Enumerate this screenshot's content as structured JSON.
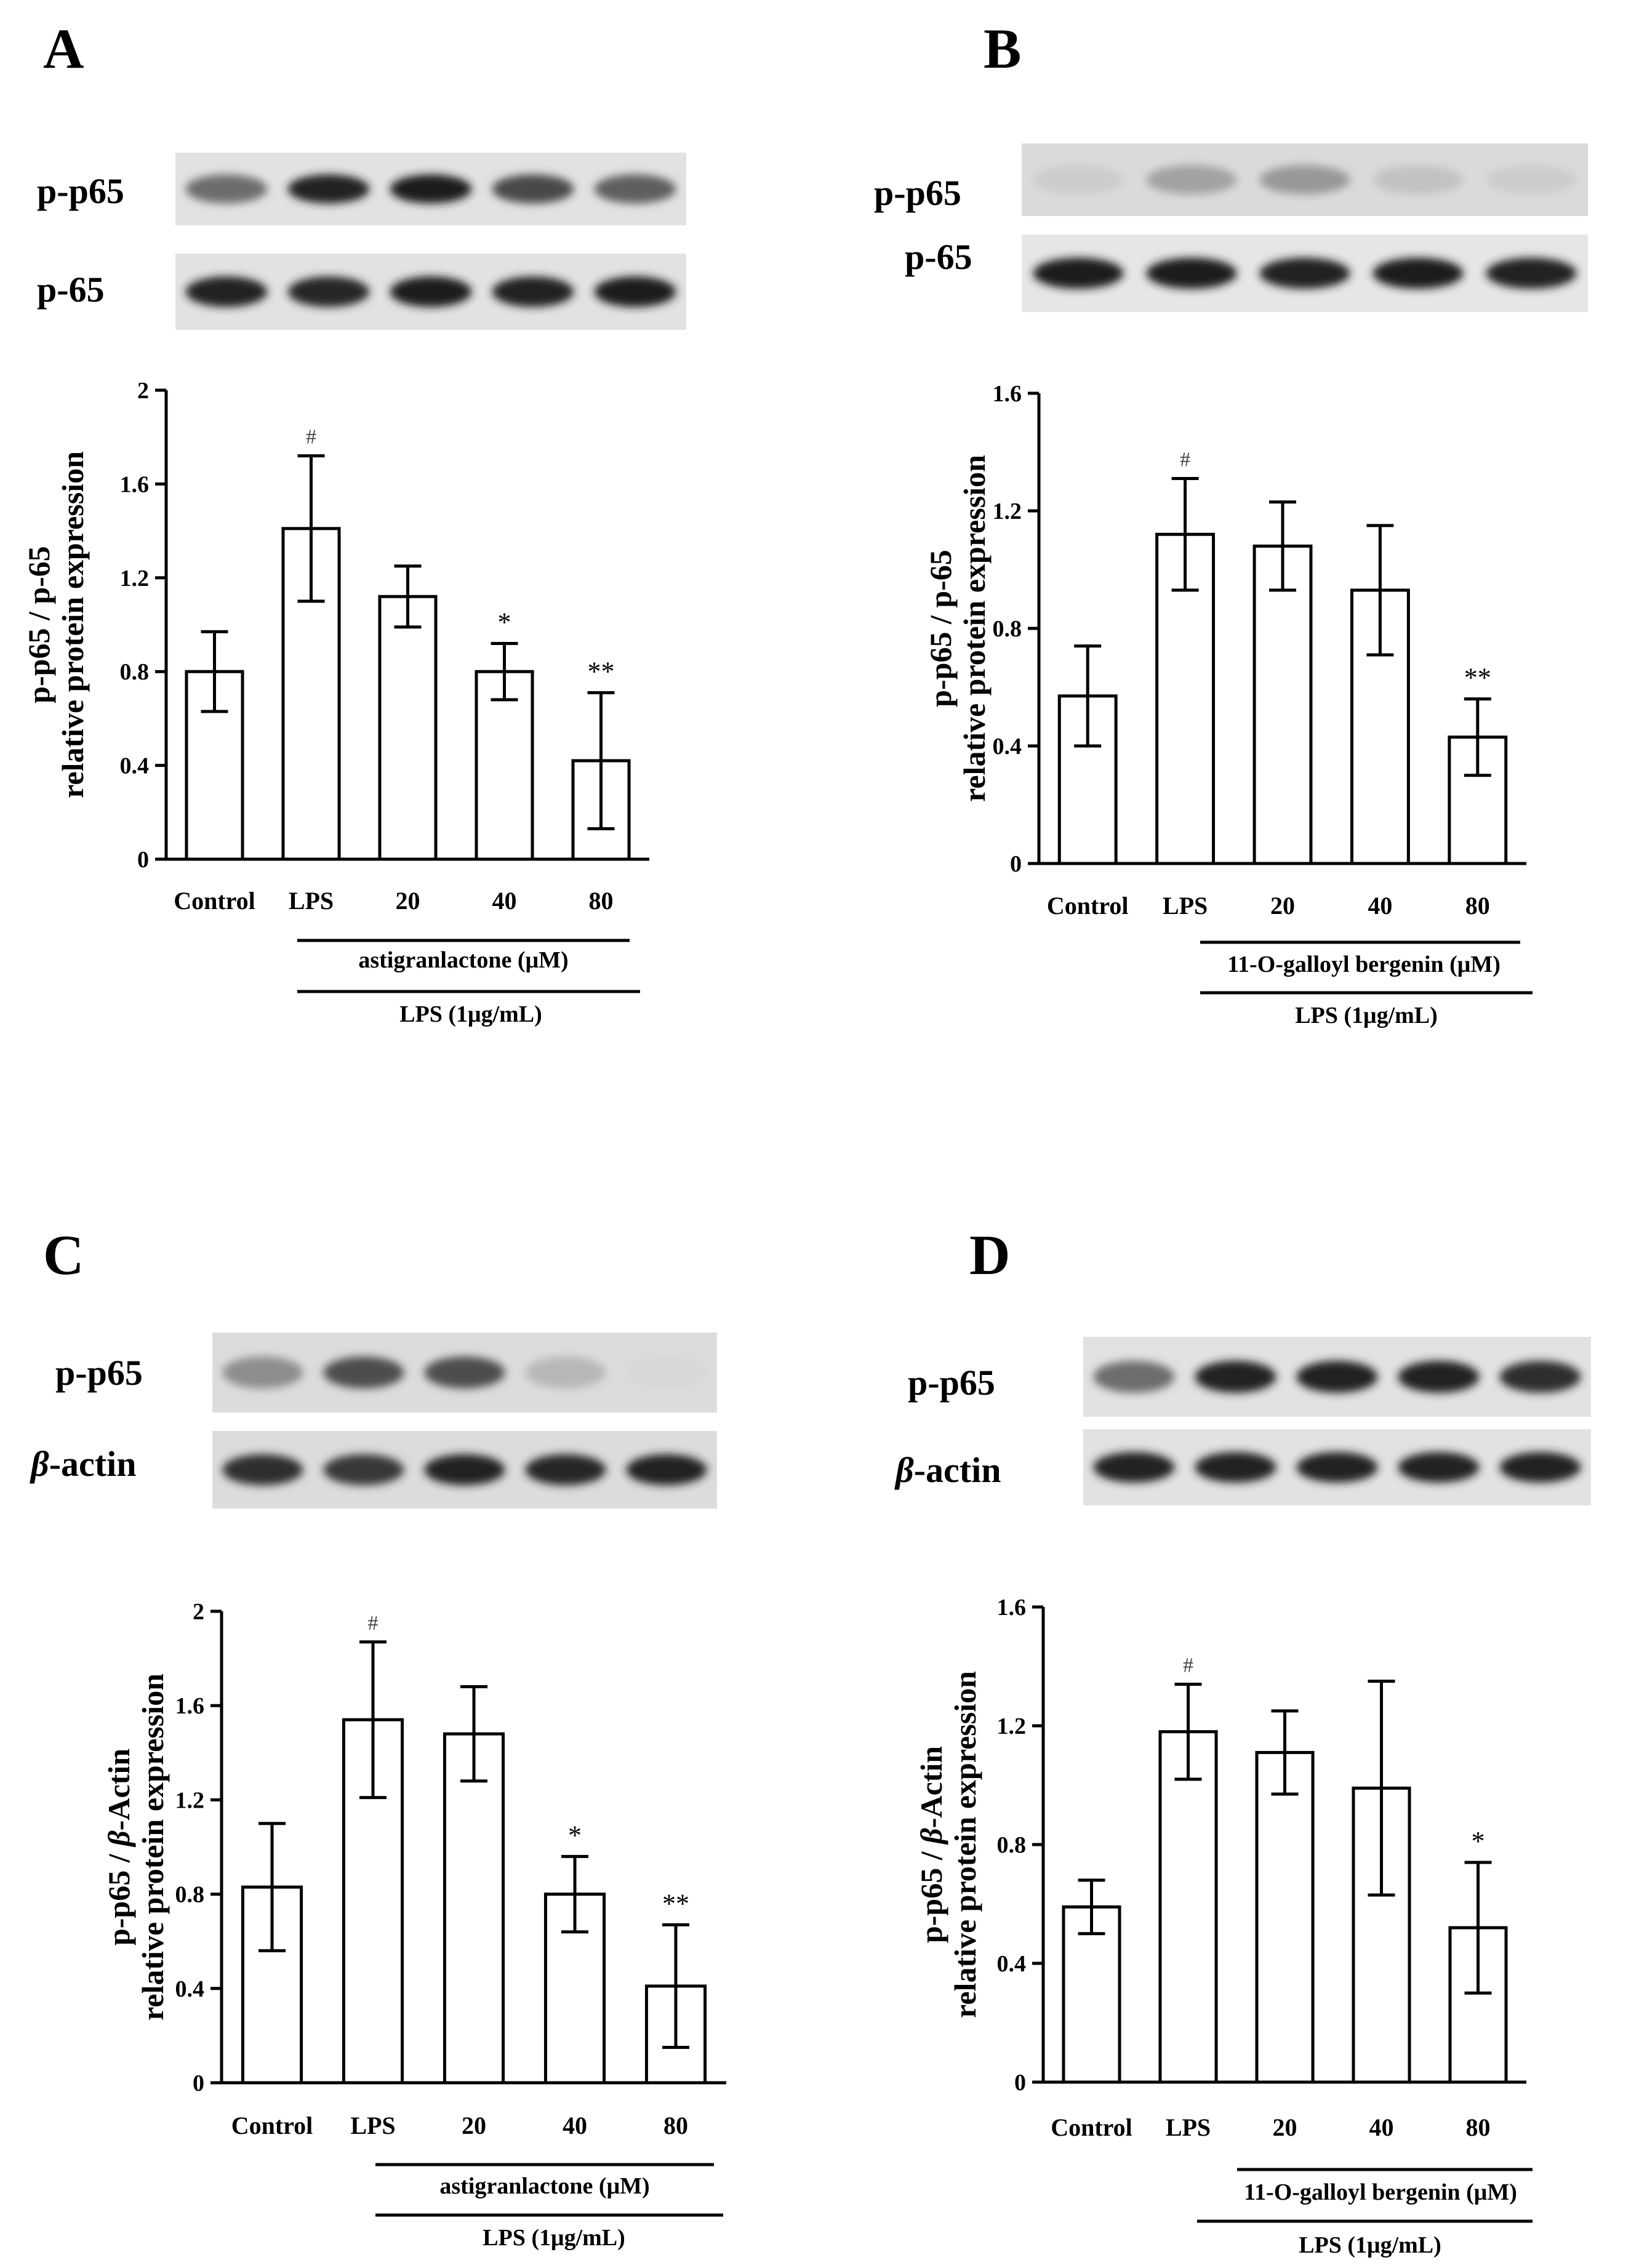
{
  "panels": [
    {
      "letter": "A",
      "blots": [
        {
          "label": "p-p65",
          "italic_prefix": "",
          "intensities": [
            0.55,
            0.92,
            0.95,
            0.72,
            0.62
          ],
          "background": "#e2e2e2"
        },
        {
          "label": "p-65",
          "italic_prefix": "",
          "intensities": [
            0.92,
            0.88,
            0.95,
            0.9,
            0.93
          ],
          "background": "#e2e2e2"
        }
      ],
      "ylabel_line1": "p-p65 / p-65",
      "ylabel_line2": "relative protein expression",
      "underline_agent": "astigranlactone (μM)",
      "underline_lps": "LPS (1μg/mL)"
    },
    {
      "letter": "B",
      "blots": [
        {
          "label": "p-p65",
          "italic_prefix": "",
          "intensities": [
            0.1,
            0.3,
            0.35,
            0.15,
            0.1
          ],
          "background": "#dadada"
        },
        {
          "label": "p-65",
          "italic_prefix": "",
          "intensities": [
            0.95,
            0.95,
            0.92,
            0.94,
            0.9
          ],
          "background": "#e6e6e6"
        }
      ],
      "ylabel_line1": "p-p65 / p-65",
      "ylabel_line2": "relative protein expression",
      "underline_agent": "11-O-galloyl bergenin (μM)",
      "underline_lps": "LPS (1μg/mL)"
    },
    {
      "letter": "C",
      "blots": [
        {
          "label": "p-p65",
          "italic_prefix": "",
          "intensities": [
            0.4,
            0.7,
            0.7,
            0.2,
            0.05
          ],
          "background": "#dcdcdc"
        },
        {
          "label": "-actin",
          "italic_prefix": "β",
          "intensities": [
            0.85,
            0.8,
            0.9,
            0.88,
            0.9
          ],
          "background": "#dcdcdc"
        }
      ],
      "ylabel_line1_prefix": "p-p65 / ",
      "ylabel_line1_italic": "β",
      "ylabel_line1_suffix": "-Actin",
      "ylabel_line2": "relative protein expression",
      "underline_agent": "astigranlactone (μM)",
      "underline_lps": "LPS (1μg/mL)"
    },
    {
      "letter": "D",
      "blots": [
        {
          "label": "p-p65",
          "italic_prefix": "",
          "intensities": [
            0.55,
            0.9,
            0.92,
            0.92,
            0.85
          ],
          "background": "#e2e2e2"
        },
        {
          "label": "-actin",
          "italic_prefix": "β",
          "intensities": [
            0.92,
            0.92,
            0.92,
            0.92,
            0.92
          ],
          "background": "#e2e2e2"
        }
      ],
      "ylabel_line1_prefix": "p-p65 / ",
      "ylabel_line1_italic": "β",
      "ylabel_line1_suffix": "-Actin",
      "ylabel_line2": "relative protein expression",
      "underline_agent": "11-O-galloyl bergenin (μM)",
      "underline_lps": "LPS (1μg/mL)"
    }
  ],
  "chart_data": [
    {
      "type": "bar",
      "panel": "A",
      "categories": [
        "Control",
        "LPS",
        "20",
        "40",
        "80"
      ],
      "values": [
        0.8,
        1.41,
        1.12,
        0.8,
        0.42
      ],
      "errors": [
        0.17,
        0.31,
        0.13,
        0.12,
        0.29
      ],
      "significance": [
        "",
        "#",
        "",
        "*",
        "**"
      ],
      "ylim": [
        0,
        2
      ],
      "yticks": [
        "0",
        "0.4",
        "0.8",
        "1.2",
        "1.6",
        "2"
      ],
      "tick_values": [
        0,
        0.4,
        0.8,
        1.2,
        1.6,
        2
      ]
    },
    {
      "type": "bar",
      "panel": "B",
      "categories": [
        "Control",
        "LPS",
        "20",
        "40",
        "80"
      ],
      "values": [
        0.57,
        1.12,
        1.08,
        0.93,
        0.43
      ],
      "errors": [
        0.17,
        0.19,
        0.15,
        0.22,
        0.13
      ],
      "significance": [
        "",
        "#",
        "",
        "",
        "**"
      ],
      "ylim": [
        0,
        1.6
      ],
      "yticks": [
        "0",
        "0.4",
        "0.8",
        "1.2",
        "1.6"
      ],
      "tick_values": [
        0,
        0.4,
        0.8,
        1.2,
        1.6
      ]
    },
    {
      "type": "bar",
      "panel": "C",
      "categories": [
        "Control",
        "LPS",
        "20",
        "40",
        "80"
      ],
      "values": [
        0.83,
        1.54,
        1.48,
        0.8,
        0.41
      ],
      "errors": [
        0.27,
        0.33,
        0.2,
        0.16,
        0.26
      ],
      "significance": [
        "",
        "#",
        "",
        "*",
        "**"
      ],
      "ylim": [
        0,
        2
      ],
      "yticks": [
        "0",
        "0.4",
        "0.8",
        "1.2",
        "1.6",
        "2"
      ],
      "tick_values": [
        0,
        0.4,
        0.8,
        1.2,
        1.6,
        2
      ]
    },
    {
      "type": "bar",
      "panel": "D",
      "categories": [
        "Control",
        "LPS",
        "20",
        "40",
        "80"
      ],
      "values": [
        0.59,
        1.18,
        1.11,
        0.99,
        0.52
      ],
      "errors": [
        0.09,
        0.16,
        0.14,
        0.36,
        0.22
      ],
      "significance": [
        "",
        "#",
        "",
        "",
        "*"
      ],
      "ylim": [
        0,
        1.6
      ],
      "yticks": [
        "0",
        "0.4",
        "0.8",
        "1.2",
        "1.6"
      ],
      "tick_values": [
        0,
        0.4,
        0.8,
        1.2,
        1.6
      ]
    }
  ]
}
